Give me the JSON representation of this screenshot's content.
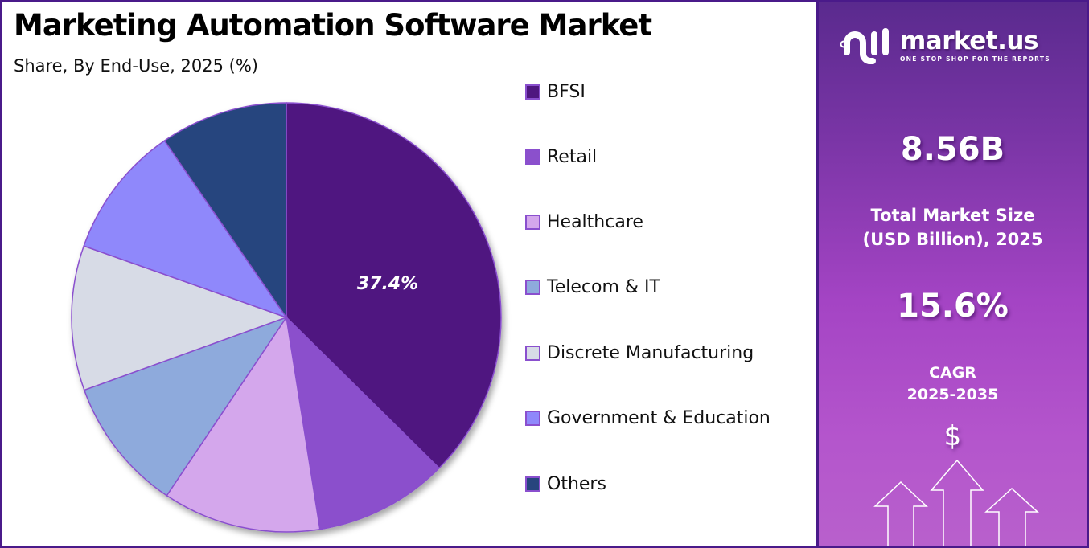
{
  "header": {
    "title": "Marketing Automation Software Market",
    "subtitle": "Share, By End-Use, 2025 (%)"
  },
  "chart_data": {
    "type": "pie",
    "title": "Marketing Automation Software Market",
    "subtitle": "Share, By End-Use, 2025 (%)",
    "categories": [
      "BFSI",
      "Retail",
      "Healthcare",
      "Telecom & IT",
      "Discrete Manufacturing",
      "Government & Education",
      "Others"
    ],
    "values": [
      37.4,
      10.1,
      11.9,
      10.1,
      10.9,
      10.0,
      9.6
    ],
    "colors": [
      "#4f1780",
      "#8b50cc",
      "#d4a7ec",
      "#8eaadc",
      "#d7dbe6",
      "#8f88fb",
      "#27457e"
    ],
    "annotations": [
      {
        "category": "BFSI",
        "label": "37.4%"
      }
    ],
    "start_angle_deg": 0,
    "direction": "clockwise",
    "slice_border_color": "#8a4fce",
    "legend_position": "right"
  },
  "legend": {
    "items": [
      {
        "label": "BFSI",
        "color": "#4f1780"
      },
      {
        "label": "Retail",
        "color": "#8b50cc"
      },
      {
        "label": "Healthcare",
        "color": "#d4a7ec"
      },
      {
        "label": "Telecom & IT",
        "color": "#8eaadc"
      },
      {
        "label": "Discrete Manufacturing",
        "color": "#d7dbe6"
      },
      {
        "label": "Government & Education",
        "color": "#8f88fb"
      },
      {
        "label": "Others",
        "color": "#27457e"
      }
    ]
  },
  "pie": {
    "highlight_label": "37.4%"
  },
  "sidebar": {
    "logo": {
      "name": "market.us",
      "tagline": "ONE STOP SHOP FOR THE REPORTS"
    },
    "market_size": {
      "value": "8.56B",
      "label_line1": "Total Market Size",
      "label_line2": "(USD Billion), 2025"
    },
    "cagr": {
      "value": "15.6%",
      "label_line1": "CAGR",
      "label_line2": "2025-2035"
    },
    "icon_symbol": "$"
  }
}
